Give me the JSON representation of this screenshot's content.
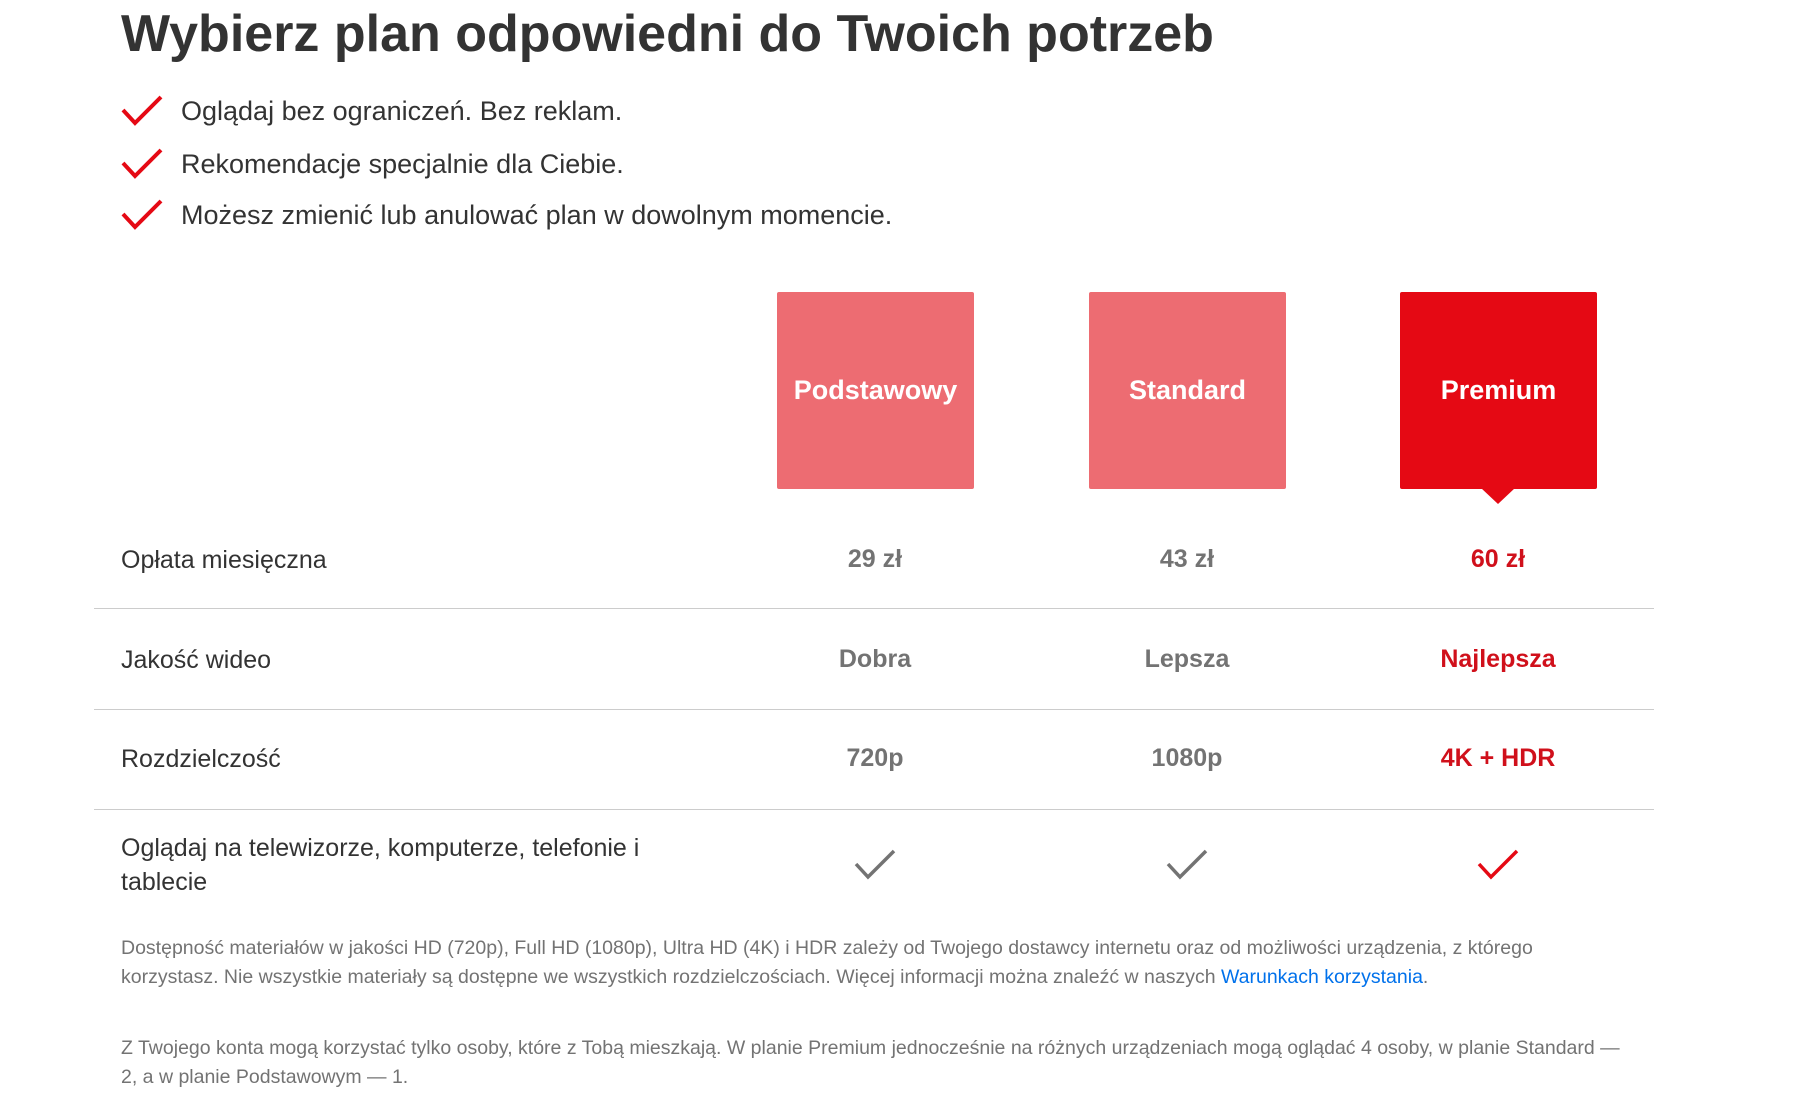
{
  "header": {
    "title": "Wybierz plan odpowiedni do Twoich potrzeb"
  },
  "benefits": [
    "Oglądaj bez ograniczeń. Bez reklam.",
    "Rekomendacje specjalnie dla Ciebie.",
    "Możesz zmienić lub anulować plan w dowolnym momencie."
  ],
  "plans": [
    "Podstawowy",
    "Standard",
    "Premium"
  ],
  "table": {
    "rows": [
      {
        "label": "Opłata miesięczna",
        "values": [
          "29 zł",
          "43 zł",
          "60 zł"
        ]
      },
      {
        "label": "Jakość wideo",
        "values": [
          "Dobra",
          "Lepsza",
          "Najlepsza"
        ]
      },
      {
        "label": "Rozdzielczość",
        "values": [
          "720p",
          "1080p",
          "4K + HDR"
        ]
      },
      {
        "label": "Oglądaj na telewizorze, komputerze, telefonie i tablecie"
      }
    ]
  },
  "notes": {
    "availability": {
      "text": "Dostępność materiałów w jakości HD (720p), Full HD (1080p), Ultra HD (4K) i HDR zależy od Twojego dostawcy internetu oraz od możliwości urządzenia, z którego korzystasz. Nie wszystkie materiały są dostępne we wszystkich rozdzielczościach. Więcej informacji można znaleźć w naszych",
      "link": "Warunkach korzystania",
      "end": "."
    },
    "household": "Z Twojego konta mogą korzystać tylko osoby, które z Tobą mieszkają. W planie Premium jednocześnie na różnych urządzeniach mogą oglądać 4 osoby, w planie Standard — 2, a w planie Podstawowym — 1."
  }
}
